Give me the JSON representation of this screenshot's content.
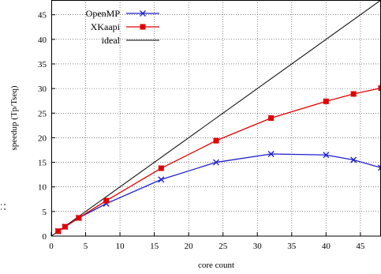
{
  "chart_data": {
    "type": "line",
    "title": "",
    "xlabel": "core count",
    "ylabel": "speedup (Tp/Tseq)",
    "xlim": [
      0,
      48
    ],
    "ylim": [
      0,
      48
    ],
    "x_ticks": [
      0,
      5,
      10,
      15,
      20,
      25,
      30,
      35,
      40,
      45
    ],
    "y_ticks": [
      0,
      5,
      10,
      15,
      20,
      25,
      30,
      35,
      40,
      45
    ],
    "grid": true,
    "legend_position": "top-left",
    "series": [
      {
        "name": "OpenMP",
        "color": "#1f1fcf",
        "marker": "x",
        "x": [
          1,
          2,
          4,
          8,
          16,
          24,
          32,
          40,
          44,
          48
        ],
        "y": [
          1,
          1.9,
          3.7,
          6.6,
          11.5,
          15.0,
          16.7,
          16.5,
          15.5,
          13.9
        ]
      },
      {
        "name": "XKaapi",
        "color": "#e00000",
        "marker": "square",
        "x": [
          1,
          2,
          4,
          8,
          16,
          24,
          32,
          40,
          44,
          48
        ],
        "y": [
          1,
          1.9,
          3.7,
          7.2,
          13.8,
          19.4,
          24.0,
          27.4,
          28.9,
          30.1
        ]
      },
      {
        "name": "ideal",
        "color": "#000000",
        "marker": "none",
        "x": [
          0,
          48
        ],
        "y": [
          0,
          48
        ]
      }
    ]
  },
  "edge_label": "; ;"
}
